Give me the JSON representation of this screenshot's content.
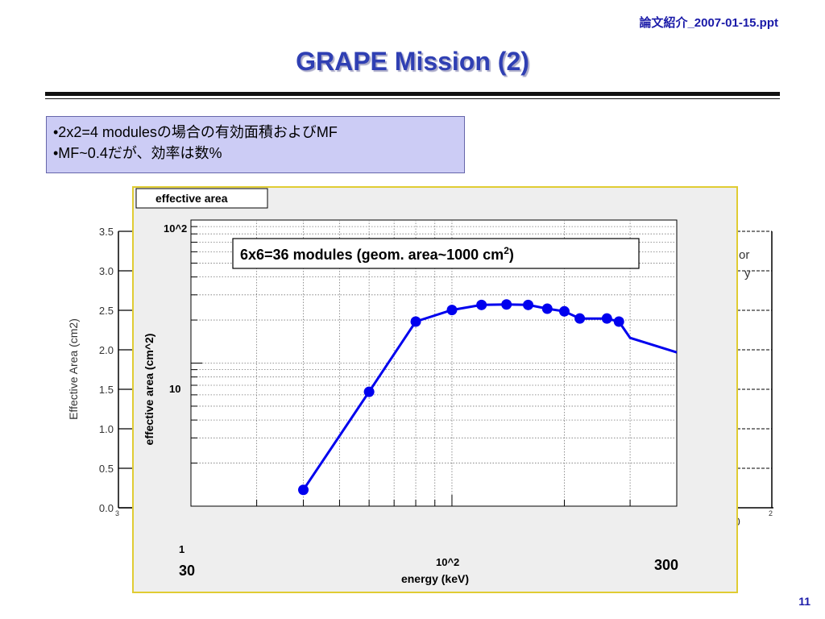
{
  "header": {
    "filename": "論文紹介_2007-01-15.ppt",
    "title": "GRAPE Mission (2)"
  },
  "note": {
    "lines": [
      "•2x2=4 modulesの場合の有効面積およびMF",
      "•MF~0.4だが、効率は数%"
    ]
  },
  "page_number": "11",
  "chart_data": [
    {
      "type": "line",
      "title": "effective area",
      "xlabel": "energy (keV)",
      "ylabel": "effective area (cm^2)",
      "x_scale": "log",
      "y_scale": "log",
      "xlim": [
        20,
        400
      ],
      "ylim": [
        1,
        100
      ],
      "grid": true,
      "x_tick_labels": [
        "10^2"
      ],
      "y_tick_labels": [
        "1",
        "10",
        "10^2"
      ],
      "annotation": "6x6=36 modules (geom. area~1000 cm2)",
      "extra_labels": [
        "30",
        "300"
      ],
      "series": [
        {
          "color": "#0000ee",
          "x": [
            40,
            60,
            80,
            100,
            120,
            140,
            160,
            180,
            200,
            220,
            260,
            280,
            300
          ],
          "y": [
            1.3,
            6.3,
            19.5,
            23.5,
            25.5,
            25.7,
            25.5,
            24,
            23,
            20.5,
            20.5,
            19.5,
            15
          ]
        }
      ]
    },
    {
      "type": "line",
      "ylabel": "Effective Area (cm2)",
      "y_ticks": [
        "0.0",
        "0.5",
        "1.0",
        "1.5",
        "2.0",
        "2.5",
        "3.0",
        "3.5"
      ],
      "ylim": [
        0,
        3.5
      ],
      "partial_text": [
        "or",
        "y"
      ],
      "partial_tick_labels": [
        "3",
        "0",
        "2"
      ]
    }
  ]
}
